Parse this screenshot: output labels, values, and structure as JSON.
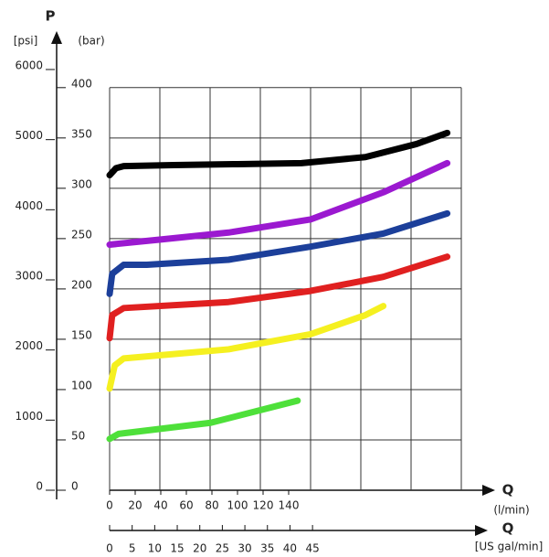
{
  "chart_data": {
    "type": "line",
    "y_label": "P",
    "y_unit": "(bar)",
    "y2_unit": "[psi]",
    "x_label": "Q",
    "x_unit": "(l/min)",
    "x2_label": "Q",
    "x2_unit": "[US gal/min]",
    "ylim": [
      0,
      418
    ],
    "yticks": [
      0,
      50,
      100,
      150,
      200,
      250,
      300,
      350,
      400
    ],
    "y2lim": [
      0,
      6000
    ],
    "y2ticks": [
      0,
      1000,
      2000,
      3000,
      4000,
      5000,
      6000
    ],
    "xlim": [
      0,
      275
    ],
    "xticks": [
      0,
      20,
      40,
      60,
      80,
      100,
      120,
      140
    ],
    "x2lim": [
      0,
      78
    ],
    "x2ticks": [
      0,
      5,
      10,
      15,
      20,
      25,
      30,
      35,
      40,
      45
    ],
    "grid": true,
    "series": [
      {
        "color": "#000000",
        "x": [
          0,
          5,
          11,
          50,
          100,
          150,
          200,
          240,
          264
        ],
        "values": [
          313,
          320,
          322,
          323,
          324,
          325,
          331,
          344,
          355
        ]
      },
      {
        "color": "#9b19d0",
        "x": [
          0,
          39,
          93,
          157,
          214,
          264
        ],
        "values": [
          244,
          249,
          256,
          269,
          296,
          325
        ]
      },
      {
        "color": "#1c3f9a",
        "x": [
          0,
          2,
          11,
          29,
          93,
          157,
          214,
          264
        ],
        "values": [
          195,
          215,
          224,
          224,
          229,
          242,
          255,
          275
        ]
      },
      {
        "color": "#e02020",
        "x": [
          0,
          2,
          11,
          93,
          157,
          214,
          264
        ],
        "values": [
          151,
          174,
          181,
          187,
          198,
          212,
          232
        ]
      },
      {
        "color": "#f5f020",
        "x": [
          0,
          4,
          11,
          93,
          157,
          200,
          214
        ],
        "values": [
          101,
          124,
          131,
          140,
          155,
          174,
          183
        ]
      },
      {
        "color": "#4ee03a",
        "x": [
          0,
          7,
          79,
          147
        ],
        "values": [
          51,
          56,
          67,
          89
        ]
      }
    ]
  }
}
